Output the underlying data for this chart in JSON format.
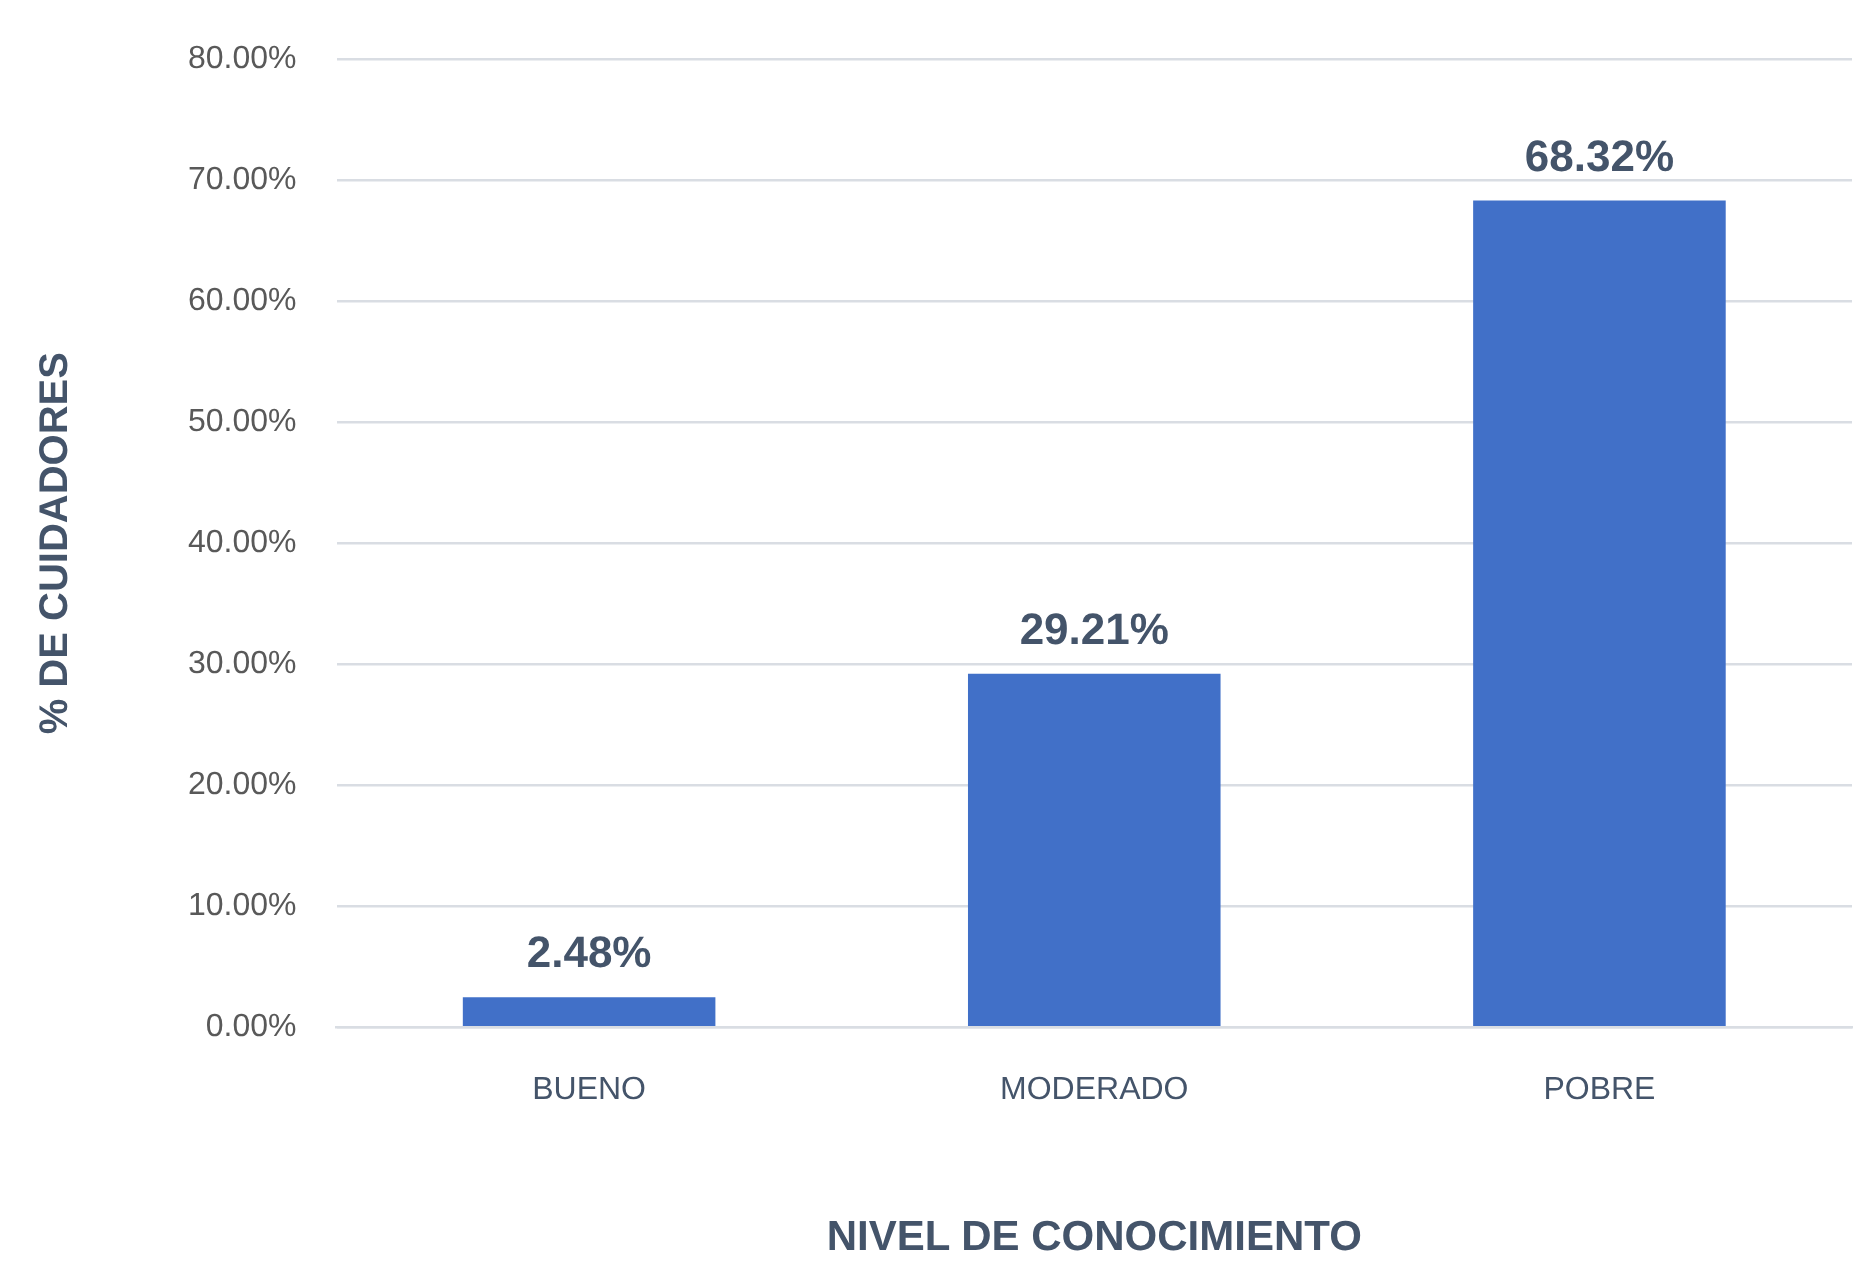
{
  "chart_data": {
    "type": "bar",
    "xlabel": "NIVEL DE CONOCIMIENTO",
    "ylabel": "% DE CUIDADORES",
    "categories": [
      "BUENO",
      "MODERADO",
      "POBRE"
    ],
    "values": [
      2.48,
      29.21,
      68.32
    ],
    "value_labels": [
      "2.48%",
      "29.21%",
      "68.32%"
    ],
    "color": "#4170c8",
    "ylim": [
      0,
      80
    ],
    "yticks": [
      {
        "value": 0,
        "label": "0.00%"
      },
      {
        "value": 10,
        "label": "10.00%"
      },
      {
        "value": 20,
        "label": "20.00%"
      },
      {
        "value": 30,
        "label": "30.00%"
      },
      {
        "value": 40,
        "label": "40.00%"
      },
      {
        "value": 50,
        "label": "50.00%"
      },
      {
        "value": 60,
        "label": "60.00%"
      },
      {
        "value": 70,
        "label": "70.00%"
      },
      {
        "value": 80,
        "label": "80.00%"
      }
    ],
    "grid": "y",
    "legend": false
  }
}
